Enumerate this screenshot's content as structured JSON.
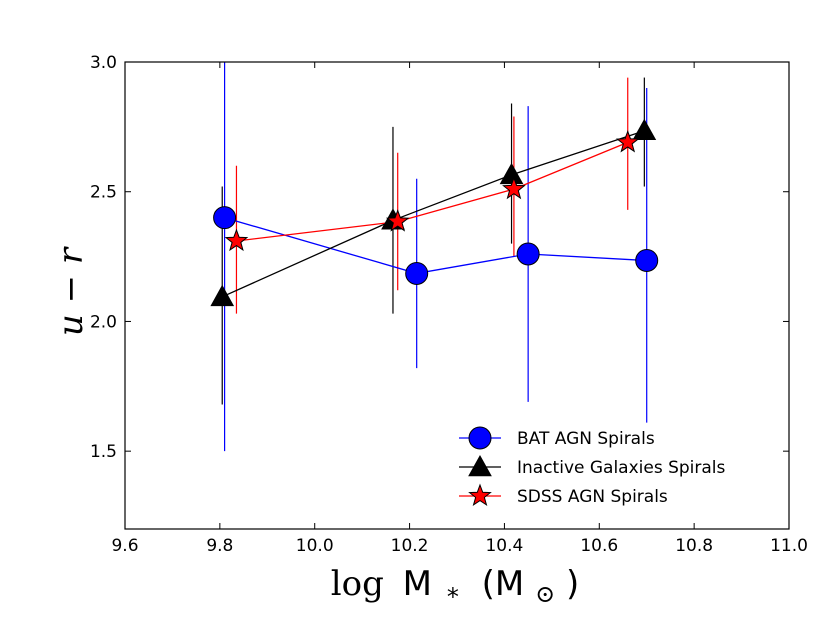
{
  "chart_data": {
    "type": "line",
    "title": "",
    "xlabel": "log M_* (M_⊙)",
    "ylabel": "u−r",
    "xlabel_parts": {
      "log": "log",
      "M": "M",
      "star": "*",
      "open": "(M",
      "close": ")"
    },
    "ylabel_parts": {
      "u": "u",
      "minus": "−",
      "r": "r"
    },
    "xlim": [
      9.6,
      11.0
    ],
    "ylim": [
      1.2,
      3.0
    ],
    "xticks": [
      "9.6",
      "9.8",
      "10.0",
      "10.2",
      "10.4",
      "10.6",
      "10.8",
      "11.0"
    ],
    "yticks": [
      "1.5",
      "2.0",
      "2.5",
      "3.0"
    ],
    "legend_position": "lower-right",
    "series": [
      {
        "name": "BAT AGN Spirals",
        "color": "#0000ff",
        "marker": "circle",
        "x": [
          9.81,
          10.215,
          10.45,
          10.7
        ],
        "y": [
          2.4,
          2.185,
          2.26,
          2.235
        ],
        "err_low": [
          1.5,
          1.82,
          1.69,
          1.61
        ],
        "err_high": [
          3.0,
          2.55,
          2.83,
          2.9
        ]
      },
      {
        "name": "Inactive Galaxies Spirals",
        "color": "#000000",
        "marker": "triangle",
        "x": [
          9.805,
          10.165,
          10.415,
          10.695
        ],
        "y": [
          2.095,
          2.39,
          2.565,
          2.735
        ],
        "err_low": [
          1.68,
          2.03,
          2.3,
          2.52
        ],
        "err_high": [
          2.52,
          2.75,
          2.84,
          2.94
        ]
      },
      {
        "name": "SDSS AGN Spirals",
        "color": "#ff0000",
        "marker": "star",
        "x": [
          9.835,
          10.175,
          10.42,
          10.66
        ],
        "y": [
          2.31,
          2.385,
          2.51,
          2.69
        ],
        "err_low": [
          2.03,
          2.12,
          2.25,
          2.43
        ],
        "err_high": [
          2.6,
          2.65,
          2.79,
          2.94
        ]
      }
    ]
  }
}
